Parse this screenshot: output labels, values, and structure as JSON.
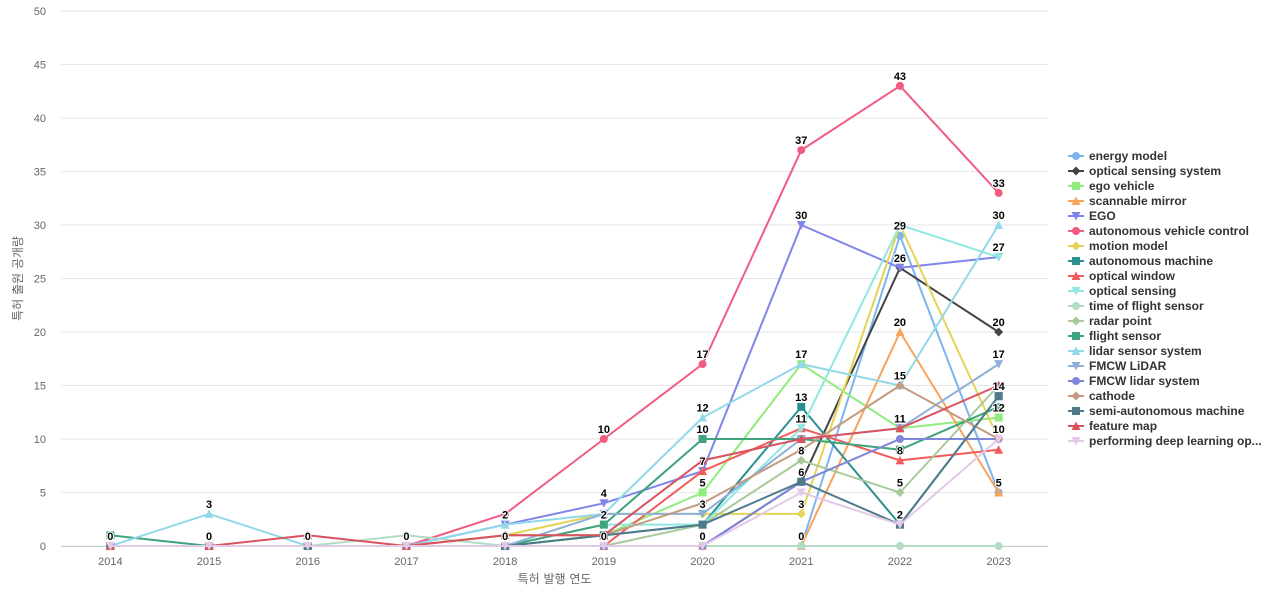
{
  "chart_data": {
    "type": "line",
    "xlabel": "특허 발행 연도",
    "ylabel": "특허 출원 공개량",
    "ylim": [
      0,
      50
    ],
    "yticks": [
      0,
      5,
      10,
      15,
      20,
      25,
      30,
      35,
      40,
      45,
      50
    ],
    "x": [
      "2014",
      "2015",
      "2016",
      "2017",
      "2018",
      "2019",
      "2020",
      "2021",
      "2022",
      "2023"
    ],
    "grid": "horizontal",
    "legend_position": "right",
    "series": [
      {
        "name": "energy model",
        "color": "#7cb5ec",
        "marker": "circle",
        "values": [
          0,
          0,
          0,
          0,
          0,
          0,
          0,
          0,
          29,
          5
        ]
      },
      {
        "name": "optical sensing system",
        "color": "#434348",
        "marker": "diamond",
        "values": [
          0,
          0,
          0,
          0,
          0,
          0,
          0,
          6,
          26,
          20
        ]
      },
      {
        "name": "ego vehicle",
        "color": "#90ed7d",
        "marker": "square",
        "values": [
          0,
          0,
          0,
          0,
          0,
          1,
          5,
          17,
          11,
          12
        ]
      },
      {
        "name": "scannable mirror",
        "color": "#f7a35c",
        "marker": "triangle",
        "values": [
          0,
          0,
          0,
          0,
          0,
          0,
          0,
          0,
          20,
          5
        ]
      },
      {
        "name": "EGO",
        "color": "#8085e9",
        "marker": "triangle-down",
        "values": [
          0,
          0,
          0,
          0,
          2,
          4,
          7,
          30,
          26,
          27
        ]
      },
      {
        "name": "autonomous vehicle control",
        "color": "#f15c80",
        "marker": "circle",
        "values": [
          0,
          0,
          0,
          0,
          3,
          10,
          17,
          37,
          43,
          33
        ]
      },
      {
        "name": "motion model",
        "color": "#e4d354",
        "marker": "diamond",
        "values": [
          0,
          0,
          0,
          0,
          1,
          3,
          3,
          3,
          30,
          10
        ]
      },
      {
        "name": "autonomous machine",
        "color": "#2b908f",
        "marker": "square",
        "values": [
          0,
          0,
          0,
          0,
          0,
          1,
          2,
          13,
          2,
          14
        ]
      },
      {
        "name": "optical window",
        "color": "#f45b5b",
        "marker": "triangle",
        "values": [
          0,
          0,
          0,
          0,
          0,
          0,
          7,
          11,
          8,
          9
        ]
      },
      {
        "name": "optical sensing",
        "color": "#91e8e1",
        "marker": "triangle-down",
        "values": [
          0,
          0,
          0,
          0,
          0,
          2,
          2,
          11,
          30,
          27
        ]
      },
      {
        "name": "time of flight sensor",
        "color": "#b4dcc4",
        "marker": "circle",
        "values": [
          0,
          0,
          0,
          1,
          0,
          0,
          0,
          0,
          0,
          0
        ]
      },
      {
        "name": "radar point",
        "color": "#a8c999",
        "marker": "diamond",
        "values": [
          0,
          0,
          0,
          0,
          0,
          0,
          2,
          8,
          5,
          15
        ]
      },
      {
        "name": "flight sensor",
        "color": "#3fa37c",
        "marker": "square",
        "values": [
          1,
          0,
          0,
          0,
          0,
          2,
          10,
          10,
          9,
          13
        ]
      },
      {
        "name": "lidar sensor system",
        "color": "#92d8ea",
        "marker": "triangle",
        "values": [
          0,
          3,
          0,
          0,
          2,
          3,
          12,
          17,
          15,
          30
        ]
      },
      {
        "name": "FMCW LiDAR",
        "color": "#8db0da",
        "marker": "triangle-down",
        "values": [
          0,
          0,
          0,
          0,
          0,
          3,
          3,
          10,
          11,
          17
        ]
      },
      {
        "name": "FMCW lidar system",
        "color": "#7f86da",
        "marker": "circle",
        "values": [
          0,
          0,
          0,
          0,
          0,
          0,
          0,
          6,
          10,
          10
        ]
      },
      {
        "name": "cathode",
        "color": "#c49a80",
        "marker": "diamond",
        "values": [
          0,
          0,
          0,
          0,
          1,
          1,
          4,
          9,
          15,
          10
        ]
      },
      {
        "name": "semi-autonomous machine",
        "color": "#4f7a8c",
        "marker": "square",
        "values": [
          0,
          0,
          0,
          0,
          0,
          1,
          2,
          6,
          2,
          14
        ]
      },
      {
        "name": "feature map",
        "color": "#d9535f",
        "marker": "triangle",
        "values": [
          0,
          0,
          1,
          0,
          1,
          1,
          8,
          10,
          11,
          15
        ]
      },
      {
        "name": "performing deep learning op...",
        "color": "#e2c9e8",
        "marker": "triangle-down",
        "values": [
          0,
          0,
          0,
          0,
          0,
          0,
          0,
          5,
          2,
          10
        ]
      }
    ],
    "data_labels": [
      {
        "x": "2014",
        "y": 0,
        "text": "0"
      },
      {
        "x": "2015",
        "y": 3,
        "text": "3"
      },
      {
        "x": "2015",
        "y": 0,
        "text": "0"
      },
      {
        "x": "2016",
        "y": 0,
        "text": "0"
      },
      {
        "x": "2017",
        "y": 0,
        "text": "0"
      },
      {
        "x": "2018",
        "y": 2,
        "text": "2"
      },
      {
        "x": "2018",
        "y": 0,
        "text": "0"
      },
      {
        "x": "2019",
        "y": 10,
        "text": "10"
      },
      {
        "x": "2019",
        "y": 4,
        "text": "4"
      },
      {
        "x": "2019",
        "y": 2,
        "text": "2"
      },
      {
        "x": "2019",
        "y": 0,
        "text": "0"
      },
      {
        "x": "2020",
        "y": 17,
        "text": "17"
      },
      {
        "x": "2020",
        "y": 12,
        "text": "12"
      },
      {
        "x": "2020",
        "y": 10,
        "text": "10"
      },
      {
        "x": "2020",
        "y": 7,
        "text": "7"
      },
      {
        "x": "2020",
        "y": 5,
        "text": "5"
      },
      {
        "x": "2020",
        "y": 3,
        "text": "3"
      },
      {
        "x": "2020",
        "y": 0,
        "text": "0"
      },
      {
        "x": "2021",
        "y": 37,
        "text": "37"
      },
      {
        "x": "2021",
        "y": 30,
        "text": "30"
      },
      {
        "x": "2021",
        "y": 17,
        "text": "17"
      },
      {
        "x": "2021",
        "y": 13,
        "text": "13"
      },
      {
        "x": "2021",
        "y": 11,
        "text": "11"
      },
      {
        "x": "2021",
        "y": 8,
        "text": "8"
      },
      {
        "x": "2021",
        "y": 6,
        "text": "6"
      },
      {
        "x": "2021",
        "y": 3,
        "text": "3"
      },
      {
        "x": "2021",
        "y": 0,
        "text": "0"
      },
      {
        "x": "2022",
        "y": 43,
        "text": "43"
      },
      {
        "x": "2022",
        "y": 29,
        "text": "29"
      },
      {
        "x": "2022",
        "y": 26,
        "text": "26"
      },
      {
        "x": "2022",
        "y": 20,
        "text": "20"
      },
      {
        "x": "2022",
        "y": 15,
        "text": "15"
      },
      {
        "x": "2022",
        "y": 11,
        "text": "11"
      },
      {
        "x": "2022",
        "y": 8,
        "text": "8"
      },
      {
        "x": "2022",
        "y": 5,
        "text": "5"
      },
      {
        "x": "2022",
        "y": 2,
        "text": "2"
      },
      {
        "x": "2023",
        "y": 33,
        "text": "33"
      },
      {
        "x": "2023",
        "y": 30,
        "text": "30"
      },
      {
        "x": "2023",
        "y": 27,
        "text": "27"
      },
      {
        "x": "2023",
        "y": 20,
        "text": "20"
      },
      {
        "x": "2023",
        "y": 17,
        "text": "17"
      },
      {
        "x": "2023",
        "y": 14,
        "text": "14"
      },
      {
        "x": "2023",
        "y": 12,
        "text": "12"
      },
      {
        "x": "2023",
        "y": 10,
        "text": "10"
      },
      {
        "x": "2023",
        "y": 5,
        "text": "5"
      }
    ]
  }
}
